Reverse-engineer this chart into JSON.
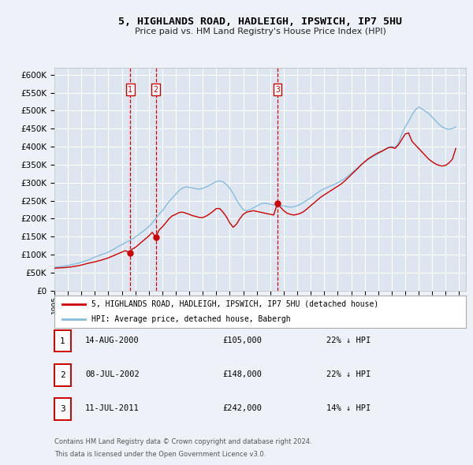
{
  "title": "5, HIGHLANDS ROAD, HADLEIGH, IPSWICH, IP7 5HU",
  "subtitle": "Price paid vs. HM Land Registry's House Price Index (HPI)",
  "ylim": [
    0,
    620000
  ],
  "yticks": [
    0,
    50000,
    100000,
    150000,
    200000,
    250000,
    300000,
    350000,
    400000,
    450000,
    500000,
    550000,
    600000
  ],
  "xlim_start": 1995.0,
  "xlim_end": 2025.5,
  "background_color": "#eef2f8",
  "plot_bg_color": "#dde6f0",
  "grid_color": "#ffffff",
  "sale_color": "#cc0000",
  "hpi_color": "#88bbdd",
  "sale_label": "5, HIGHLANDS ROAD, HADLEIGH, IPSWICH, IP7 5HU (detached house)",
  "hpi_label": "HPI: Average price, detached house, Babergh",
  "transactions": [
    {
      "num": 1,
      "date": "14-AUG-2000",
      "price": 105000,
      "pct": "22%",
      "x": 2000.62
    },
    {
      "num": 2,
      "date": "08-JUL-2002",
      "price": 148000,
      "pct": "22%",
      "x": 2002.52
    },
    {
      "num": 3,
      "date": "11-JUL-2011",
      "price": 242000,
      "pct": "14%",
      "x": 2011.53
    }
  ],
  "vline_color": "#dd0000",
  "footnote1": "Contains HM Land Registry data © Crown copyright and database right 2024.",
  "footnote2": "This data is licensed under the Open Government Licence v3.0.",
  "hpi_data_x": [
    1995.0,
    1995.25,
    1995.5,
    1995.75,
    1996.0,
    1996.25,
    1996.5,
    1996.75,
    1997.0,
    1997.25,
    1997.5,
    1997.75,
    1998.0,
    1998.25,
    1998.5,
    1998.75,
    1999.0,
    1999.25,
    1999.5,
    1999.75,
    2000.0,
    2000.25,
    2000.5,
    2000.75,
    2001.0,
    2001.25,
    2001.5,
    2001.75,
    2002.0,
    2002.25,
    2002.5,
    2002.75,
    2003.0,
    2003.25,
    2003.5,
    2003.75,
    2004.0,
    2004.25,
    2004.5,
    2004.75,
    2005.0,
    2005.25,
    2005.5,
    2005.75,
    2006.0,
    2006.25,
    2006.5,
    2006.75,
    2007.0,
    2007.25,
    2007.5,
    2007.75,
    2008.0,
    2008.25,
    2008.5,
    2008.75,
    2009.0,
    2009.25,
    2009.5,
    2009.75,
    2010.0,
    2010.25,
    2010.5,
    2010.75,
    2011.0,
    2011.25,
    2011.5,
    2011.75,
    2012.0,
    2012.25,
    2012.5,
    2012.75,
    2013.0,
    2013.25,
    2013.5,
    2013.75,
    2014.0,
    2014.25,
    2014.5,
    2014.75,
    2015.0,
    2015.25,
    2015.5,
    2015.75,
    2016.0,
    2016.25,
    2016.5,
    2016.75,
    2017.0,
    2017.25,
    2017.5,
    2017.75,
    2018.0,
    2018.25,
    2018.5,
    2018.75,
    2019.0,
    2019.25,
    2019.5,
    2019.75,
    2020.0,
    2020.25,
    2020.5,
    2020.75,
    2021.0,
    2021.25,
    2021.5,
    2021.75,
    2022.0,
    2022.25,
    2022.5,
    2022.75,
    2023.0,
    2023.25,
    2023.5,
    2023.75,
    2024.0,
    2024.25,
    2024.5,
    2024.75
  ],
  "hpi_data_y": [
    65000,
    66000,
    67000,
    68000,
    70000,
    72000,
    74000,
    76000,
    79000,
    82000,
    85000,
    89000,
    93000,
    97000,
    100000,
    103000,
    107000,
    112000,
    117000,
    123000,
    128000,
    133000,
    138000,
    143000,
    149000,
    156000,
    163000,
    170000,
    178000,
    188000,
    200000,
    212000,
    222000,
    235000,
    248000,
    258000,
    268000,
    278000,
    285000,
    288000,
    287000,
    285000,
    283000,
    282000,
    284000,
    288000,
    293000,
    298000,
    303000,
    305000,
    302000,
    295000,
    284000,
    270000,
    252000,
    237000,
    225000,
    222000,
    225000,
    230000,
    235000,
    240000,
    243000,
    242000,
    240000,
    238000,
    237000,
    236000,
    235000,
    233000,
    232000,
    233000,
    236000,
    240000,
    246000,
    252000,
    258000,
    265000,
    272000,
    278000,
    283000,
    287000,
    291000,
    295000,
    300000,
    305000,
    311000,
    318000,
    326000,
    334000,
    342000,
    350000,
    357000,
    364000,
    370000,
    375000,
    380000,
    386000,
    392000,
    398000,
    400000,
    398000,
    410000,
    435000,
    455000,
    470000,
    488000,
    502000,
    510000,
    505000,
    498000,
    492000,
    482000,
    472000,
    462000,
    455000,
    450000,
    448000,
    450000,
    455000
  ],
  "sale_data_x": [
    1995.0,
    1995.25,
    1995.5,
    1995.75,
    1996.0,
    1996.25,
    1996.5,
    1996.75,
    1997.0,
    1997.25,
    1997.5,
    1997.75,
    1998.0,
    1998.25,
    1998.5,
    1998.75,
    1999.0,
    1999.25,
    1999.5,
    1999.75,
    2000.0,
    2000.25,
    2000.62,
    2000.75,
    2001.0,
    2001.25,
    2001.5,
    2001.75,
    2002.0,
    2002.25,
    2002.52,
    2002.75,
    2003.0,
    2003.25,
    2003.5,
    2003.75,
    2004.0,
    2004.25,
    2004.5,
    2004.75,
    2005.0,
    2005.25,
    2005.5,
    2005.75,
    2006.0,
    2006.25,
    2006.5,
    2006.75,
    2007.0,
    2007.25,
    2007.5,
    2007.75,
    2008.0,
    2008.25,
    2008.5,
    2008.75,
    2009.0,
    2009.25,
    2009.5,
    2009.75,
    2010.0,
    2010.25,
    2010.5,
    2010.75,
    2011.0,
    2011.25,
    2011.53,
    2011.75,
    2012.0,
    2012.25,
    2012.5,
    2012.75,
    2013.0,
    2013.25,
    2013.5,
    2013.75,
    2014.0,
    2014.25,
    2014.5,
    2014.75,
    2015.0,
    2015.25,
    2015.5,
    2015.75,
    2016.0,
    2016.25,
    2016.5,
    2016.75,
    2017.0,
    2017.25,
    2017.5,
    2017.75,
    2018.0,
    2018.25,
    2018.5,
    2018.75,
    2019.0,
    2019.25,
    2019.5,
    2019.75,
    2020.0,
    2020.25,
    2020.5,
    2020.75,
    2021.0,
    2021.25,
    2021.5,
    2021.75,
    2022.0,
    2022.25,
    2022.5,
    2022.75,
    2023.0,
    2023.25,
    2023.5,
    2023.75,
    2024.0,
    2024.25,
    2024.5,
    2024.75
  ],
  "sale_data_y": [
    62000,
    63000,
    63500,
    64000,
    65000,
    66000,
    67500,
    69000,
    71000,
    73500,
    76000,
    78000,
    80000,
    82500,
    85000,
    88000,
    91000,
    95000,
    99000,
    103000,
    107000,
    111000,
    105000,
    115000,
    120000,
    128000,
    136000,
    144000,
    152000,
    162000,
    148000,
    168000,
    177000,
    188000,
    200000,
    208000,
    212000,
    217000,
    218000,
    215000,
    212000,
    208000,
    206000,
    203000,
    203000,
    207000,
    213000,
    220000,
    228000,
    228000,
    218000,
    205000,
    188000,
    176000,
    185000,
    200000,
    212000,
    218000,
    220000,
    222000,
    220000,
    218000,
    216000,
    214000,
    212000,
    210000,
    242000,
    232000,
    222000,
    215000,
    212000,
    210000,
    212000,
    215000,
    220000,
    228000,
    236000,
    244000,
    252000,
    260000,
    266000,
    272000,
    278000,
    284000,
    290000,
    296000,
    304000,
    313000,
    322000,
    331000,
    340000,
    350000,
    358000,
    366000,
    372000,
    378000,
    383000,
    387000,
    392000,
    397000,
    398000,
    395000,
    405000,
    420000,
    435000,
    438000,
    415000,
    405000,
    395000,
    385000,
    375000,
    365000,
    358000,
    352000,
    348000,
    346000,
    348000,
    355000,
    365000,
    395000
  ]
}
